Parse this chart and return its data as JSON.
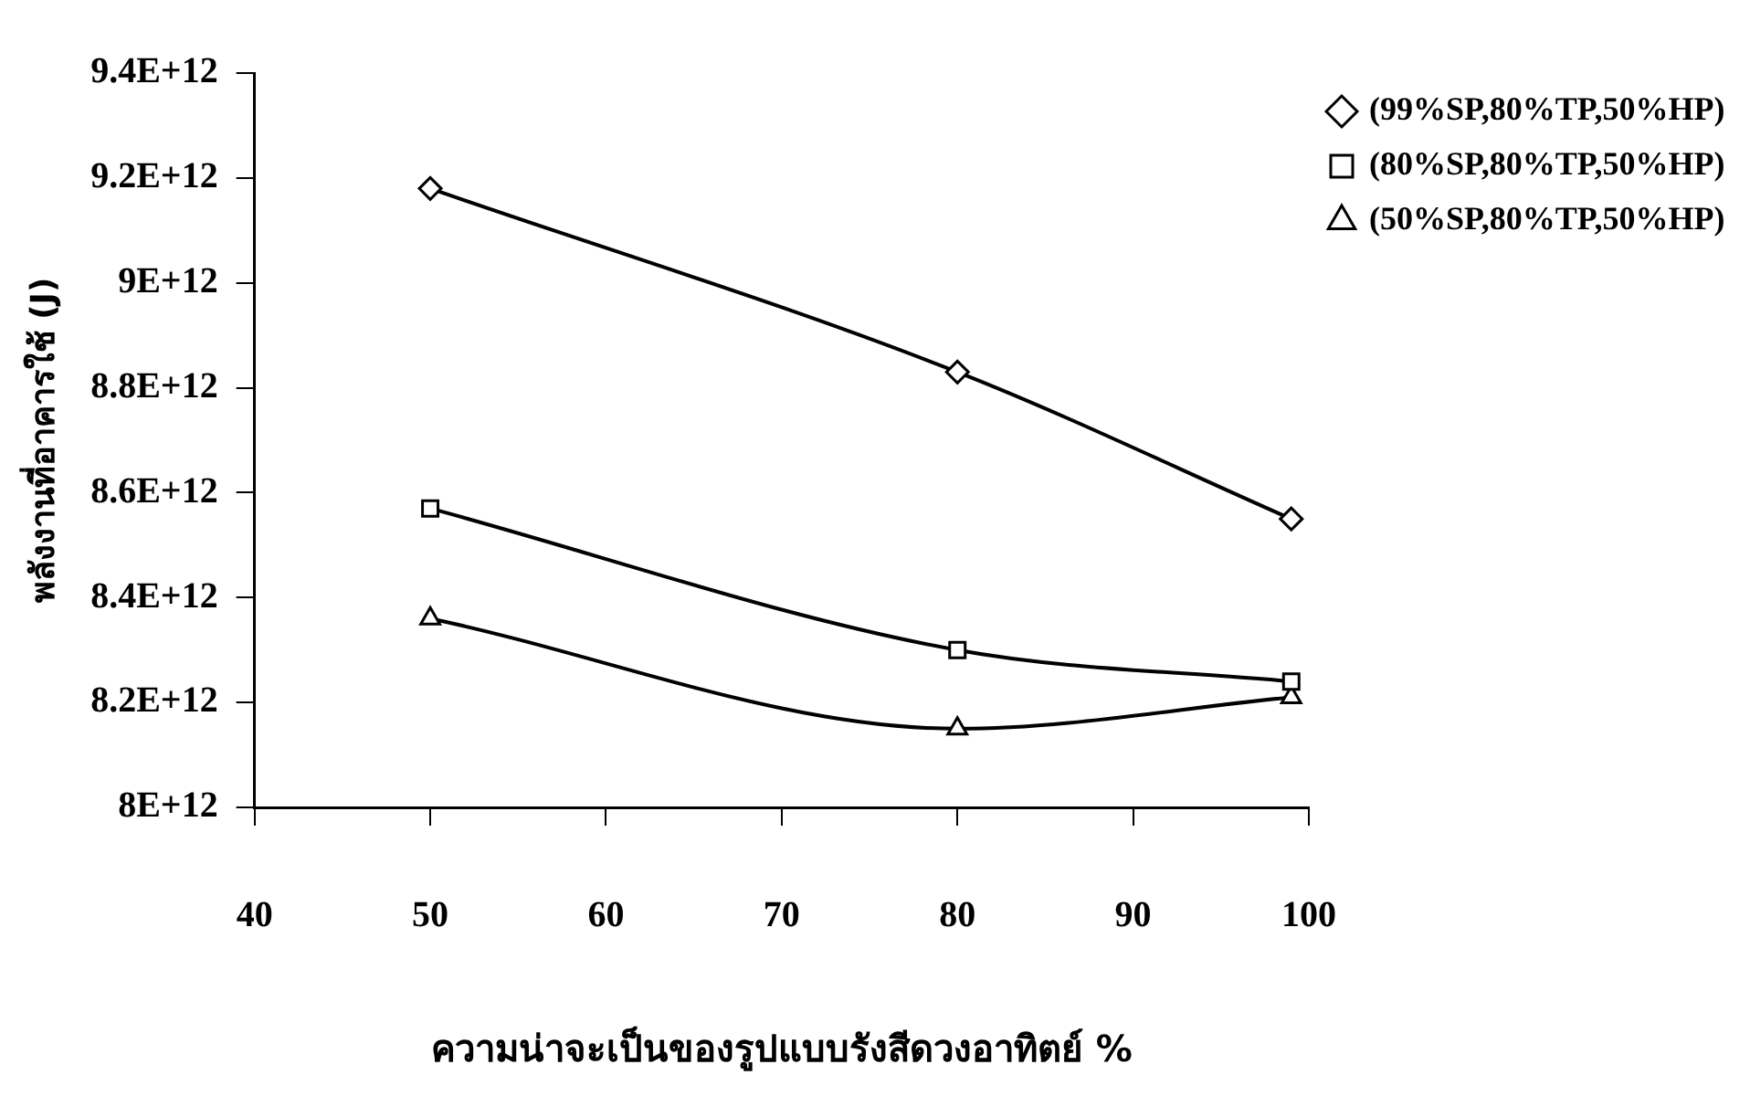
{
  "chart_data": {
    "type": "line",
    "xlabel": "ความน่าจะเป็นของรูปแบบรังสีดวงอาทิตย์ %",
    "ylabel": "พลังงานที่อาคารใช้ (J)",
    "x": [
      50,
      80,
      99
    ],
    "series": [
      {
        "name": "(99%SP,80%TP,50%HP)",
        "color": "#000000",
        "marker": "diamond",
        "values": [
          9180000000000.0,
          8830000000000.0,
          8550000000000.0
        ]
      },
      {
        "name": "(80%SP,80%TP,50%HP)",
        "color": "#000000",
        "marker": "square",
        "values": [
          8570000000000.0,
          8300000000000.0,
          8240000000000.0
        ]
      },
      {
        "name": "(50%SP,80%TP,50%HP)",
        "color": "#000000",
        "marker": "triangle",
        "values": [
          8360000000000.0,
          8150000000000.0,
          8210000000000.0
        ]
      }
    ],
    "xlim": [
      40,
      100
    ],
    "xticks": [
      40,
      50,
      60,
      70,
      80,
      90,
      100
    ],
    "ylim": [
      8000000000000.0,
      9400000000000.0
    ],
    "yticks": [
      {
        "value": 8000000000000.0,
        "label": "8E+12"
      },
      {
        "value": 8200000000000.0,
        "label": "8.2E+12"
      },
      {
        "value": 8400000000000.0,
        "label": "8.4E+12"
      },
      {
        "value": 8600000000000.0,
        "label": "8.6E+12"
      },
      {
        "value": 8800000000000.0,
        "label": "8.8E+12"
      },
      {
        "value": 9000000000000.0,
        "label": "9E+12"
      },
      {
        "value": 9200000000000.0,
        "label": "9.2E+12"
      },
      {
        "value": 9400000000000.0,
        "label": "9.4E+12"
      }
    ],
    "grid": false,
    "legend": "top right",
    "line_style": "solid"
  }
}
